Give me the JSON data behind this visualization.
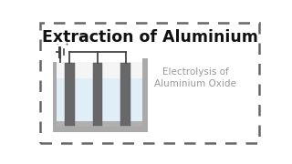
{
  "title": "Extraction of Aluminium",
  "subtitle_line1": "Electrolysis of",
  "subtitle_line2": "Aluminium Oxide",
  "bg_color": "#ffffff",
  "border_color": "#666666",
  "title_color": "#111111",
  "subtitle_color": "#999999",
  "tank_wall_color": "#aaaaaa",
  "tank_inner_bg": "#f5f5f5",
  "liquid_color": "#ddeef8",
  "electrode_color": "#686868",
  "wire_color": "#444444",
  "sediment_color": "#b0b0b0",
  "title_fontsize": 12.5,
  "subtitle_fontsize": 7.5
}
